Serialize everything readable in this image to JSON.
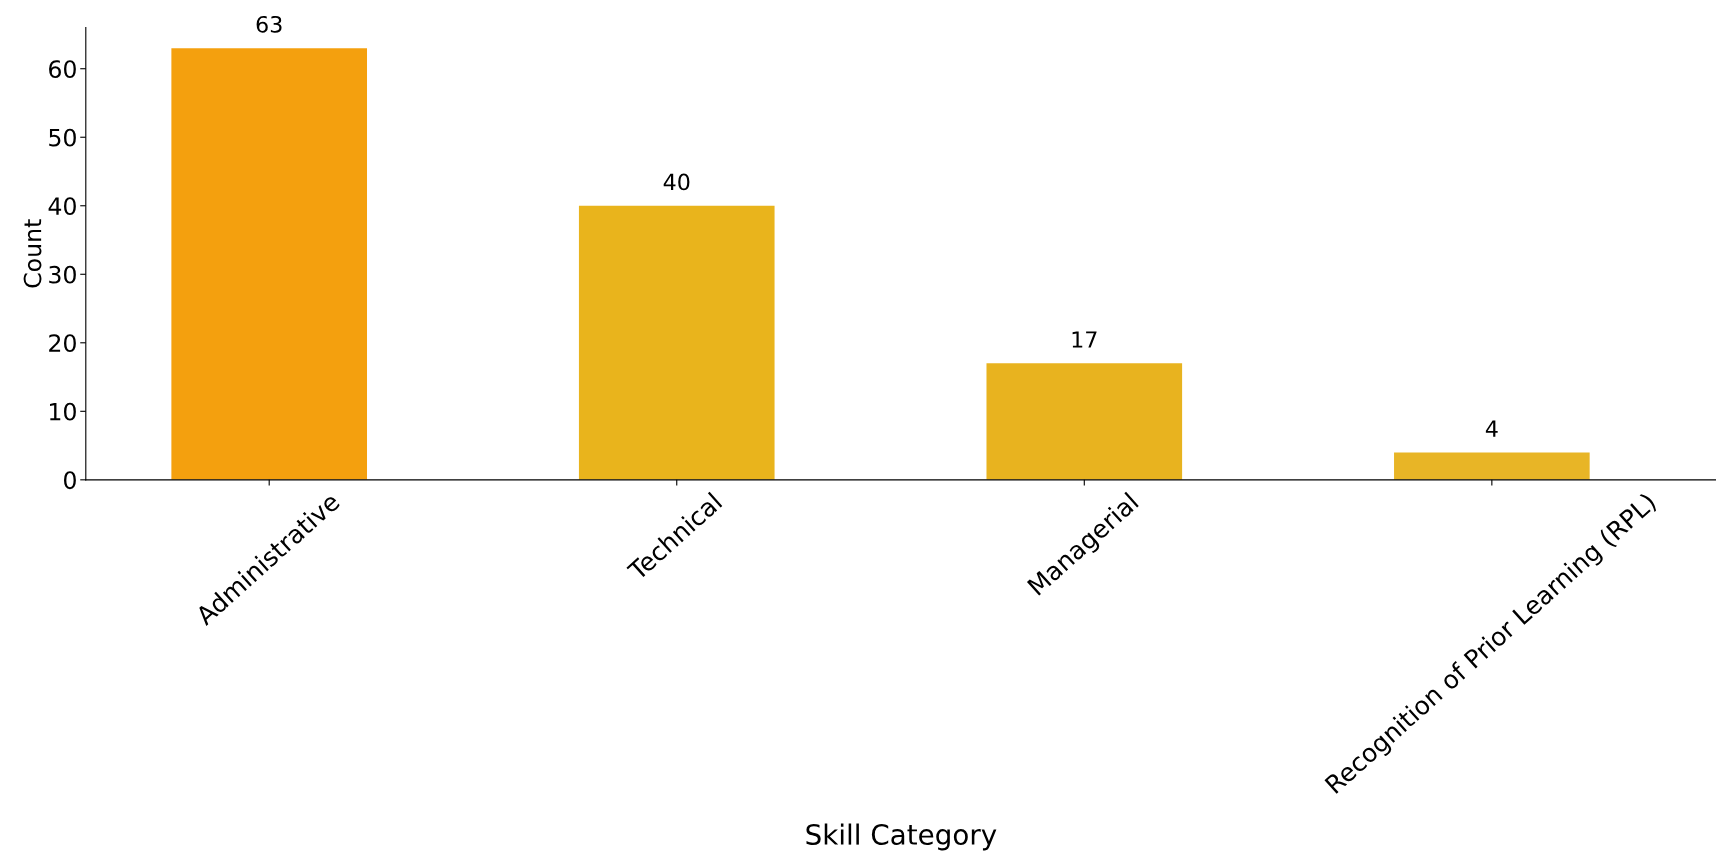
{
  "chart_data": {
    "type": "bar",
    "categories": [
      "Administrative",
      "Technical",
      "Managerial",
      "Recognition of Prior Learning (RPL)"
    ],
    "values": [
      63,
      40,
      17,
      4
    ],
    "colors": [
      "#f4a00e",
      "#e9b41c",
      "#e8b31f",
      "#e8b526"
    ],
    "xlabel": "Skill Category",
    "ylabel": "Count",
    "ylim": [
      0,
      66
    ],
    "yticks": [
      0,
      10,
      20,
      30,
      40,
      50,
      60
    ],
    "data_labels": true,
    "grid": false,
    "legend": false
  }
}
